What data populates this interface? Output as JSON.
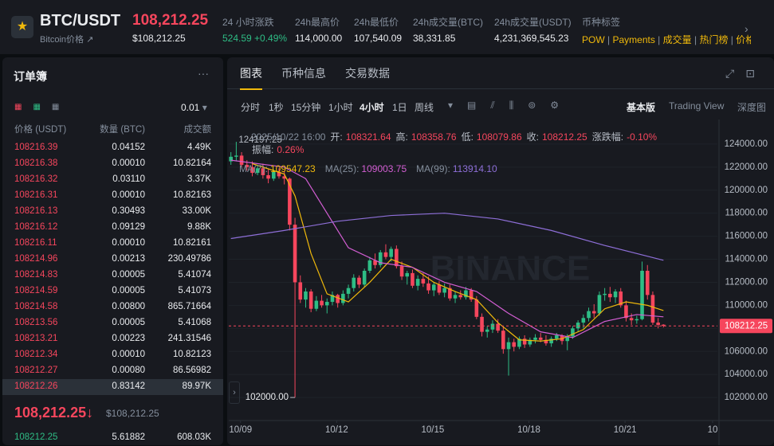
{
  "header": {
    "symbol": "BTC/USDT",
    "subtitle": "Bitcoin价格 ↗",
    "price": "108,212.25",
    "price_usd": "$108,212.25",
    "stats": [
      {
        "label": "24 小时涨跌",
        "value": "524.59 +0.49%"
      },
      {
        "label": "24h最高价",
        "value": "114,000.00"
      },
      {
        "label": "24h最低价",
        "value": "107,540.09"
      },
      {
        "label": "24h成交量(BTC)",
        "value": "38,331.85"
      },
      {
        "label": "24h成交量(USDT)",
        "value": "4,231,369,545.23"
      }
    ],
    "tags_label": "币种标签",
    "tags": [
      "POW",
      "Payments",
      "成交量",
      "热门榜",
      "价格"
    ]
  },
  "order_book": {
    "title": "订单簿",
    "step": "0.01",
    "columns": [
      "价格 (USDT)",
      "数量 (BTC)",
      "成交额"
    ],
    "asks": [
      [
        "108216.39",
        "0.04152",
        "4.49K"
      ],
      [
        "108216.38",
        "0.00010",
        "10.82164"
      ],
      [
        "108216.32",
        "0.03110",
        "3.37K"
      ],
      [
        "108216.31",
        "0.00010",
        "10.82163"
      ],
      [
        "108216.13",
        "0.30493",
        "33.00K"
      ],
      [
        "108216.12",
        "0.09129",
        "9.88K"
      ],
      [
        "108216.11",
        "0.00010",
        "10.82161"
      ],
      [
        "108214.96",
        "0.00213",
        "230.49786"
      ],
      [
        "108214.83",
        "0.00005",
        "5.41074"
      ],
      [
        "108214.59",
        "0.00005",
        "5.41073"
      ],
      [
        "108214.58",
        "0.00800",
        "865.71664"
      ],
      [
        "108213.56",
        "0.00005",
        "5.41068"
      ],
      [
        "108213.21",
        "0.00223",
        "241.31546"
      ],
      [
        "108212.34",
        "0.00010",
        "10.82123"
      ],
      [
        "108212.27",
        "0.00080",
        "86.56982"
      ],
      [
        "108212.26",
        "0.83142",
        "89.97K"
      ]
    ],
    "last_price": "108,212.25↓",
    "last_price_usd": "$108,212.25",
    "bids": [
      [
        "108212.25",
        "5.61882",
        "608.03K"
      ]
    ]
  },
  "chart_panel": {
    "tabs": [
      "图表",
      "币种信息",
      "交易数据"
    ],
    "intervals": [
      "分时",
      "1秒",
      "15分钟",
      "1小时",
      "4小时",
      "1日",
      "周线"
    ],
    "views": [
      "基本版",
      "Trading View",
      "深度图"
    ],
    "time": "2025/10/22 16:00",
    "ohlc_info": [
      {
        "label": "开:",
        "value": "108321.64"
      },
      {
        "label": "高:",
        "value": "108358.76"
      },
      {
        "label": "低:",
        "value": "108079.86"
      },
      {
        "label": "收:",
        "value": "108212.25"
      },
      {
        "label": "涨跌幅:",
        "value": "-0.10%"
      }
    ],
    "amplitude": {
      "label": "振幅:",
      "value": "0.26%"
    },
    "ma_info": [
      {
        "label": "MA(7):",
        "value": "109547.23"
      },
      {
        "label": "MA(25):",
        "value": "109003.75"
      },
      {
        "label": "MA(99):",
        "value": "113914.10"
      }
    ]
  },
  "chart_data": {
    "type": "candlestick",
    "watermark": "BINANCE",
    "up_color": "#2ebd85",
    "down_color": "#f6465d",
    "xlim": [
      -0.4,
      91.1
    ],
    "ylim": [
      100000,
      125100
    ],
    "xticks": [
      {
        "value": 1.8,
        "label": "10/09"
      },
      {
        "value": 19.8,
        "label": "10/12"
      },
      {
        "value": 37.8,
        "label": "10/15"
      },
      {
        "value": 55.8,
        "label": "10/18"
      },
      {
        "value": 73.8,
        "label": "10/21"
      },
      {
        "value": 90.2,
        "label": "10"
      }
    ],
    "yticks": [
      {
        "value": 124000,
        "label": "124000.00"
      },
      {
        "value": 122000,
        "label": "122000.00"
      },
      {
        "value": 120000,
        "label": "120000.00"
      },
      {
        "value": 118000,
        "label": "118000.00"
      },
      {
        "value": 116000,
        "label": "116000.00"
      },
      {
        "value": 114000,
        "label": "114000.00"
      },
      {
        "value": 112000,
        "label": "112000.00"
      },
      {
        "value": 110000,
        "label": "110000.00"
      },
      {
        "value": 108000,
        "label": "108000.00"
      },
      {
        "value": 106000,
        "label": "106000.00"
      },
      {
        "value": 104000,
        "label": "104000.00"
      },
      {
        "value": 102000,
        "label": "102000.00"
      }
    ],
    "high_label": "124197.25",
    "low_label": "102000.00",
    "price_line": {
      "value": 108212.25,
      "label": "108212.25"
    },
    "candles": [
      [
        122500,
        123300,
        122200,
        122900
      ],
      [
        122900,
        124197.25,
        122500,
        123000
      ],
      [
        123000,
        123300,
        122000,
        122200
      ],
      [
        122200,
        122600,
        121700,
        122000
      ],
      [
        122000,
        122500,
        121200,
        121500
      ],
      [
        121500,
        122200,
        121300,
        121900
      ],
      [
        121900,
        122300,
        121000,
        121300
      ],
      [
        121300,
        121800,
        120600,
        121000
      ],
      [
        121000,
        121800,
        120800,
        121600
      ],
      [
        121600,
        121900,
        121000,
        121200
      ],
      [
        121200,
        121700,
        120500,
        121000
      ],
      [
        121000,
        121100,
        116500,
        117000
      ],
      [
        117000,
        117600,
        102000,
        112000
      ],
      [
        112000,
        112600,
        110200,
        110500
      ],
      [
        110500,
        111500,
        109800,
        111200
      ],
      [
        111200,
        111400,
        109400,
        109700
      ],
      [
        109700,
        110800,
        109500,
        110400
      ],
      [
        110400,
        110900,
        109800,
        110000
      ],
      [
        110000,
        110600,
        109300,
        110300
      ],
      [
        110300,
        111200,
        110000,
        110900
      ],
      [
        110900,
        111000,
        109800,
        110200
      ],
      [
        110200,
        111300,
        110000,
        111000
      ],
      [
        111000,
        111800,
        110600,
        111500
      ],
      [
        111500,
        112700,
        111200,
        112400
      ],
      [
        112400,
        112600,
        111500,
        111800
      ],
      [
        111800,
        113200,
        111600,
        113000
      ],
      [
        113000,
        114200,
        112800,
        113900
      ],
      [
        113900,
        114500,
        113200,
        113500
      ],
      [
        113500,
        114800,
        113300,
        114600
      ],
      [
        114600,
        115300,
        114000,
        114200
      ],
      [
        114200,
        115100,
        113800,
        114900
      ],
      [
        114900,
        115200,
        113200,
        113400
      ],
      [
        113400,
        113800,
        112200,
        112500
      ],
      [
        112500,
        113000,
        111800,
        112800
      ],
      [
        112800,
        113100,
        111500,
        111700
      ],
      [
        111700,
        112600,
        111300,
        112300
      ],
      [
        112300,
        112800,
        111600,
        111900
      ],
      [
        111900,
        112500,
        111000,
        111300
      ],
      [
        111300,
        112000,
        110800,
        111800
      ],
      [
        111800,
        112100,
        110900,
        111100
      ],
      [
        111100,
        111900,
        110700,
        111500
      ],
      [
        111500,
        111800,
        110400,
        110600
      ],
      [
        110600,
        111200,
        110200,
        110900
      ],
      [
        110900,
        111300,
        110500,
        110700
      ],
      [
        110700,
        111600,
        110500,
        111300
      ],
      [
        111300,
        111500,
        110300,
        110500
      ],
      [
        110500,
        110800,
        108800,
        109000
      ],
      [
        109000,
        109300,
        107300,
        107700
      ],
      [
        107700,
        108200,
        107200,
        107900
      ],
      [
        107900,
        108700,
        107600,
        108400
      ],
      [
        108400,
        108800,
        107600,
        107800
      ],
      [
        107800,
        108100,
        105800,
        106200
      ],
      [
        106200,
        107200,
        103900,
        106800
      ],
      [
        106800,
        107100,
        106000,
        106400
      ],
      [
        106400,
        107300,
        106200,
        107100
      ],
      [
        107100,
        107400,
        106300,
        106600
      ],
      [
        106600,
        107200,
        106400,
        107000
      ],
      [
        107000,
        107500,
        106700,
        107200
      ],
      [
        107200,
        107600,
        106800,
        107000
      ],
      [
        107000,
        107400,
        106500,
        106700
      ],
      [
        106700,
        107300,
        106400,
        107100
      ],
      [
        107100,
        107600,
        106900,
        107400
      ],
      [
        107400,
        107500,
        106600,
        106900
      ],
      [
        106900,
        107500,
        106100,
        107300
      ],
      [
        107300,
        108200,
        107100,
        108000
      ],
      [
        108000,
        108700,
        107700,
        108500
      ],
      [
        108500,
        109200,
        108000,
        108900
      ],
      [
        108900,
        109800,
        108600,
        109500
      ],
      [
        109500,
        110100,
        108900,
        109300
      ],
      [
        109300,
        111200,
        109100,
        110900
      ],
      [
        110900,
        111500,
        110400,
        111000
      ],
      [
        111000,
        111600,
        110300,
        110700
      ],
      [
        110700,
        111400,
        110200,
        111200
      ],
      [
        111200,
        111500,
        109800,
        110000
      ],
      [
        110000,
        110400,
        108600,
        108900
      ],
      [
        108900,
        109300,
        108300,
        108700
      ],
      [
        108700,
        109100,
        108400,
        108800
      ],
      [
        108800,
        113800,
        108700,
        113000
      ],
      [
        113000,
        113500,
        110500,
        110900
      ],
      [
        110900,
        111200,
        108300,
        108500
      ],
      [
        108500,
        108900,
        108000,
        108300
      ],
      [
        108321.64,
        108358.76,
        108079.86,
        108212.25
      ]
    ],
    "series": [
      {
        "name": "MA(7)",
        "color": "#f0b90b",
        "x": [
          4,
          10,
          12,
          15,
          18,
          22,
          26,
          30,
          34,
          38,
          42,
          46,
          50,
          54,
          58,
          62,
          66,
          70,
          74,
          78,
          81
        ],
        "values": [
          122300,
          121400,
          119500,
          114500,
          111000,
          110300,
          112000,
          114000,
          113300,
          112000,
          111200,
          110500,
          108500,
          107000,
          106900,
          107100,
          107900,
          109700,
          110300,
          110000,
          109547.23
        ]
      },
      {
        "name": "MA(25)",
        "color": "#d35ed3",
        "x": [
          0,
          10,
          14,
          18,
          22,
          28,
          34,
          40,
          46,
          52,
          58,
          64,
          70,
          76,
          81
        ],
        "values": [
          122600,
          122000,
          121000,
          118000,
          115000,
          113700,
          113300,
          112000,
          111200,
          109300,
          107700,
          107200,
          108600,
          109200,
          109003.75
        ]
      },
      {
        "name": "MA(99)",
        "color": "#8e6fd8",
        "x": [
          0,
          10,
          20,
          30,
          40,
          50,
          60,
          70,
          81
        ],
        "values": [
          115800,
          116500,
          117300,
          117800,
          118000,
          117500,
          116500,
          115200,
          113914.1
        ]
      }
    ]
  }
}
